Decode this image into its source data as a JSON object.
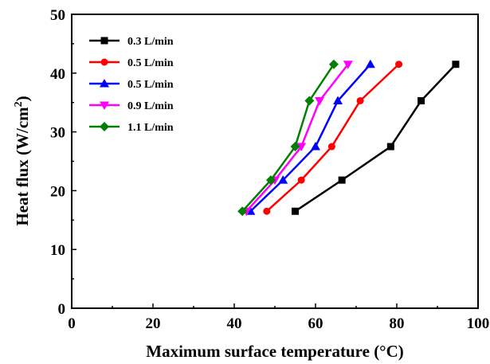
{
  "chart_data": {
    "type": "line",
    "xlabel": "Maximum surface temperature (°C)",
    "ylabel": "Heat flux (W/cm²)",
    "ylabel_base": "Heat flux (W/cm",
    "ylabel_sup": "2",
    "ylabel_end": ")",
    "xlim": [
      0,
      100
    ],
    "ylim": [
      0,
      50
    ],
    "xticks": [
      "0",
      "20",
      "40",
      "60",
      "80",
      "100"
    ],
    "yticks": [
      "0",
      "10",
      "20",
      "30",
      "40",
      "50"
    ],
    "grid": false,
    "legend_position": "top-left",
    "series": [
      {
        "name": "0.3 L/min",
        "color": "#000000",
        "marker": "square",
        "x": [
          55,
          66.5,
          78.5,
          86,
          94.5
        ],
        "y": [
          16.5,
          21.8,
          27.5,
          35.3,
          41.5
        ]
      },
      {
        "name": "0.5 L/min",
        "color": "#ff0000",
        "marker": "circle",
        "x": [
          48,
          56.5,
          64,
          71,
          80.5
        ],
        "y": [
          16.5,
          21.8,
          27.5,
          35.3,
          41.5
        ]
      },
      {
        "name": "0.5 L/min",
        "color": "#0000ff",
        "marker": "triangle-up",
        "x": [
          44,
          52,
          60,
          65.5,
          73.5
        ],
        "y": [
          16.5,
          21.8,
          27.5,
          35.3,
          41.5
        ]
      },
      {
        "name": "0.9 L/min",
        "color": "#ff00ff",
        "marker": "triangle-down",
        "x": [
          43,
          50,
          56.5,
          61,
          68
        ],
        "y": [
          16.5,
          21.8,
          27.5,
          35.3,
          41.5
        ]
      },
      {
        "name": "1.1 L/min",
        "color": "#008000",
        "marker": "diamond",
        "x": [
          42,
          49,
          55,
          58.5,
          64.5
        ],
        "y": [
          16.5,
          21.8,
          27.5,
          35.3,
          41.5
        ]
      }
    ]
  }
}
